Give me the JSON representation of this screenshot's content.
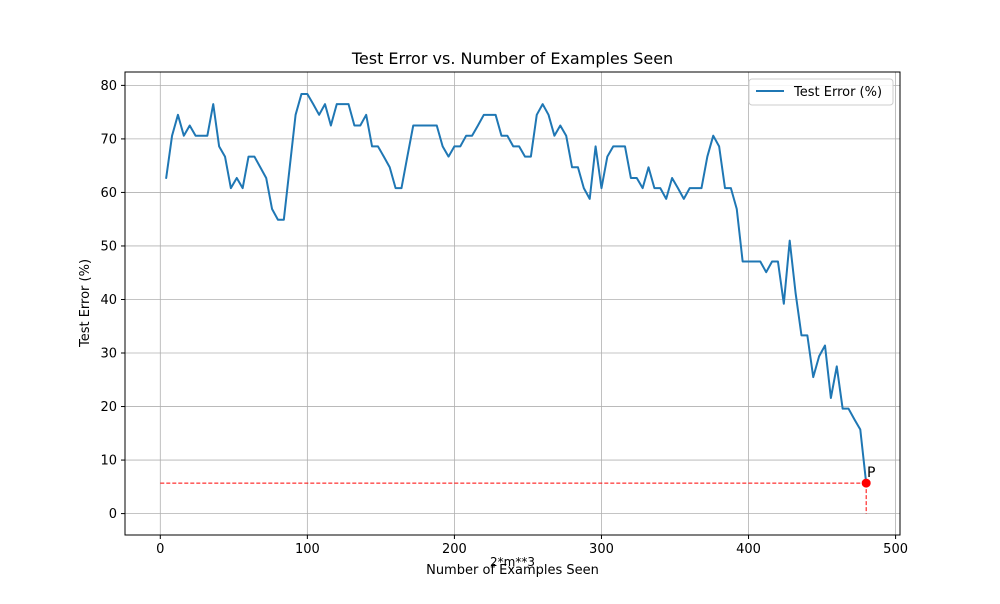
{
  "chart_data": {
    "type": "line",
    "title": "Test Error vs. Number of Examples Seen",
    "xlabel": "Number of Examples Seen",
    "ylabel": "Test Error (%)",
    "xlim": [
      -24,
      503
    ],
    "ylim": [
      -4,
      82.5
    ],
    "xticks": [
      0,
      100,
      200,
      300,
      400,
      500
    ],
    "yticks": [
      0,
      10,
      20,
      30,
      40,
      50,
      60,
      70,
      80
    ],
    "grid": true,
    "legend": {
      "placement": "top-right",
      "entries": [
        "Test Error (%)"
      ]
    },
    "colors": {
      "series": "#1f77b4",
      "point": "#ff0000",
      "guide": "#ff0000",
      "grid": "#b0b0b0"
    },
    "series": [
      {
        "name": "Test Error (%)",
        "x": [
          4,
          8,
          12,
          16,
          20,
          24,
          28,
          32,
          36,
          40,
          44,
          48,
          52,
          56,
          60,
          64,
          68,
          72,
          76,
          80,
          84,
          88,
          92,
          96,
          100,
          104,
          108,
          112,
          116,
          120,
          124,
          128,
          132,
          136,
          140,
          144,
          148,
          152,
          156,
          160,
          164,
          168,
          172,
          176,
          180,
          184,
          188,
          192,
          196,
          200,
          204,
          208,
          212,
          216,
          220,
          224,
          228,
          232,
          236,
          240,
          244,
          248,
          252,
          256,
          260,
          264,
          268,
          272,
          276,
          280,
          284,
          288,
          292,
          296,
          300,
          304,
          308,
          312,
          316,
          320,
          324,
          328,
          332,
          336,
          340,
          344,
          348,
          352,
          356,
          360,
          364,
          368,
          372,
          376,
          380,
          384,
          388,
          392,
          396,
          400,
          404,
          408,
          412,
          416,
          420,
          424,
          428,
          432,
          436,
          440,
          444,
          448,
          452,
          456,
          460,
          464,
          468,
          472,
          476,
          480
        ],
        "y": [
          62.7,
          70.6,
          74.5,
          70.6,
          72.5,
          70.6,
          70.6,
          70.6,
          76.5,
          68.6,
          66.7,
          60.8,
          62.7,
          60.8,
          66.7,
          66.7,
          64.7,
          62.7,
          56.9,
          54.9,
          54.9,
          64.7,
          74.5,
          78.4,
          78.4,
          76.5,
          74.5,
          76.5,
          72.5,
          76.5,
          76.5,
          76.5,
          72.5,
          72.5,
          74.5,
          68.6,
          68.6,
          66.7,
          64.7,
          60.8,
          60.8,
          66.7,
          72.5,
          72.5,
          72.5,
          72.5,
          72.5,
          68.6,
          66.7,
          68.6,
          68.6,
          70.6,
          70.6,
          72.5,
          74.5,
          74.5,
          74.5,
          70.6,
          70.6,
          68.6,
          68.6,
          66.7,
          66.7,
          74.5,
          76.5,
          74.5,
          70.6,
          72.5,
          70.6,
          64.7,
          64.7,
          60.8,
          58.8,
          68.6,
          60.8,
          66.7,
          68.6,
          68.6,
          68.6,
          62.7,
          62.7,
          60.8,
          64.7,
          60.8,
          60.8,
          58.8,
          62.7,
          60.8,
          58.8,
          60.8,
          60.8,
          60.8,
          66.7,
          70.6,
          68.6,
          60.8,
          60.8,
          56.9,
          47.1,
          47.1,
          47.1,
          47.1,
          45.1,
          47.1,
          47.1,
          39.2,
          51.0,
          41.2,
          33.3,
          33.3,
          25.5,
          29.4,
          31.4,
          21.6,
          27.5,
          19.6,
          19.6,
          17.6,
          15.7,
          5.7
        ]
      }
    ],
    "annotations": [
      {
        "text": "P",
        "x": 480,
        "y": 5.7
      },
      {
        "text": "2*m**3"
      }
    ]
  }
}
